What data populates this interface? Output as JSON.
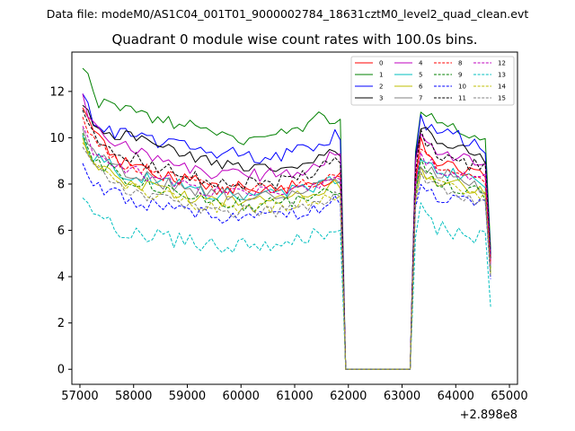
{
  "chart_data": {
    "type": "line",
    "suptitle": "Data file: modeM0/AS1C04_001T01_9000002784_18631cztM0_level2_quad_clean.evt",
    "title": "Quadrant 0 module wise count rates with 100.0s bins.",
    "xlabel": "",
    "ylabel": "",
    "x_offset_label": "+2.898e8",
    "xlim": [
      56850,
      65150
    ],
    "ylim": [
      -0.65,
      13.7
    ],
    "xticks": [
      57000,
      58000,
      59000,
      60000,
      61000,
      62000,
      63000,
      64000,
      65000
    ],
    "xtick_labels": [
      "57000",
      "58000",
      "59000",
      "60000",
      "61000",
      "62000",
      "63000",
      "64000",
      "65000"
    ],
    "yticks": [
      0,
      2,
      4,
      6,
      8,
      10,
      12
    ],
    "ytick_labels": [
      "0",
      "2",
      "4",
      "6",
      "8",
      "10",
      "12"
    ],
    "grid": false,
    "legend_position": "top-right",
    "legend_columns": 4,
    "seg1": {
      "x_start": 57050,
      "step": 100,
      "count": 49
    },
    "gap": {
      "x_start": 61950,
      "x_end": 63150,
      "step": 100,
      "value": 0
    },
    "seg2": {
      "x_start": 63250,
      "step": 100,
      "count": 15
    },
    "series": [
      {
        "name": "0",
        "color": "#ff0000",
        "dash": "solid",
        "seg1_anchors": [
          [
            57050,
            11.3
          ],
          [
            57250,
            10.2
          ],
          [
            57700,
            9.0
          ],
          [
            58500,
            8.4
          ],
          [
            59500,
            7.9
          ],
          [
            60500,
            7.8
          ],
          [
            61300,
            8.0
          ],
          [
            61750,
            8.3
          ],
          [
            61850,
            8.5
          ]
        ],
        "seg2_anchors": [
          [
            63250,
            8.2
          ],
          [
            63350,
            9.9
          ],
          [
            63500,
            9.1
          ],
          [
            64000,
            8.6
          ],
          [
            64550,
            8.3
          ],
          [
            64650,
            4.8
          ]
        ],
        "amp": 0.3
      },
      {
        "name": "1",
        "color": "#008000",
        "dash": "solid",
        "seg1_anchors": [
          [
            57050,
            13.0
          ],
          [
            57150,
            12.6
          ],
          [
            57250,
            11.7
          ],
          [
            57500,
            11.3
          ],
          [
            58500,
            10.8
          ],
          [
            59500,
            10.2
          ],
          [
            60200,
            9.9
          ],
          [
            61000,
            10.3
          ],
          [
            61500,
            10.9
          ],
          [
            61850,
            10.8
          ]
        ],
        "seg2_anchors": [
          [
            63250,
            9.4
          ],
          [
            63350,
            11.3
          ],
          [
            63500,
            11.0
          ],
          [
            64000,
            10.4
          ],
          [
            64550,
            10.0
          ],
          [
            64650,
            5.2
          ]
        ],
        "amp": 0.3
      },
      {
        "name": "2",
        "color": "#0000ff",
        "dash": "solid",
        "seg1_anchors": [
          [
            57050,
            11.9
          ],
          [
            57250,
            10.7
          ],
          [
            57700,
            10.2
          ],
          [
            58500,
            9.8
          ],
          [
            59500,
            9.4
          ],
          [
            60500,
            9.1
          ],
          [
            61300,
            9.6
          ],
          [
            61750,
            10.1
          ],
          [
            61850,
            9.9
          ]
        ],
        "seg2_anchors": [
          [
            63250,
            9.2
          ],
          [
            63350,
            10.9
          ],
          [
            63500,
            10.5
          ],
          [
            64000,
            10.1
          ],
          [
            64550,
            9.4
          ],
          [
            64650,
            5.0
          ]
        ],
        "amp": 0.3
      },
      {
        "name": "3",
        "color": "#000000",
        "dash": "solid",
        "seg1_anchors": [
          [
            57050,
            11.4
          ],
          [
            57250,
            10.5
          ],
          [
            57700,
            10.1
          ],
          [
            58500,
            9.6
          ],
          [
            59500,
            8.9
          ],
          [
            60500,
            8.8
          ],
          [
            61300,
            8.9
          ],
          [
            61750,
            9.3
          ],
          [
            61850,
            9.2
          ]
        ],
        "seg2_anchors": [
          [
            63250,
            9.1
          ],
          [
            63350,
            10.6
          ],
          [
            63500,
            10.1
          ],
          [
            64000,
            9.6
          ],
          [
            64550,
            9.0
          ],
          [
            64650,
            4.9
          ]
        ],
        "amp": 0.3
      },
      {
        "name": "4",
        "color": "#bf00bf",
        "dash": "solid",
        "seg1_anchors": [
          [
            57050,
            11.9
          ],
          [
            57250,
            10.5
          ],
          [
            57700,
            9.7
          ],
          [
            58500,
            8.9
          ],
          [
            59500,
            8.4
          ],
          [
            60500,
            8.4
          ],
          [
            61300,
            8.6
          ],
          [
            61750,
            9.3
          ],
          [
            61850,
            9.3
          ]
        ],
        "seg2_anchors": [
          [
            63250,
            9.0
          ],
          [
            63350,
            10.1
          ],
          [
            63500,
            9.6
          ],
          [
            64000,
            9.2
          ],
          [
            64550,
            9.0
          ],
          [
            64650,
            4.7
          ]
        ],
        "amp": 0.3
      },
      {
        "name": "5",
        "color": "#00bfbf",
        "dash": "solid",
        "seg1_anchors": [
          [
            57050,
            10.1
          ],
          [
            57250,
            9.2
          ],
          [
            57700,
            8.6
          ],
          [
            58500,
            8.1
          ],
          [
            59500,
            7.6
          ],
          [
            60500,
            7.6
          ],
          [
            61300,
            7.8
          ],
          [
            61750,
            8.2
          ],
          [
            61850,
            8.1
          ]
        ],
        "seg2_anchors": [
          [
            63250,
            8.0
          ],
          [
            63350,
            9.3
          ],
          [
            63500,
            8.8
          ],
          [
            64000,
            8.4
          ],
          [
            64550,
            8.0
          ],
          [
            64650,
            4.4
          ]
        ],
        "amp": 0.3
      },
      {
        "name": "6",
        "color": "#bfbf00",
        "dash": "solid",
        "seg1_anchors": [
          [
            57050,
            10.0
          ],
          [
            57250,
            9.0
          ],
          [
            57700,
            8.3
          ],
          [
            58500,
            7.7
          ],
          [
            59500,
            7.2
          ],
          [
            60500,
            7.2
          ],
          [
            61300,
            7.5
          ],
          [
            61750,
            7.9
          ],
          [
            61850,
            7.8
          ]
        ],
        "seg2_anchors": [
          [
            63250,
            7.6
          ],
          [
            63350,
            8.7
          ],
          [
            63500,
            8.2
          ],
          [
            64000,
            8.0
          ],
          [
            64550,
            7.7
          ],
          [
            64650,
            4.3
          ]
        ],
        "amp": 0.3
      },
      {
        "name": "7",
        "color": "#808080",
        "dash": "solid",
        "seg1_anchors": [
          [
            57050,
            10.4
          ],
          [
            57250,
            9.4
          ],
          [
            57700,
            8.7
          ],
          [
            58500,
            8.1
          ],
          [
            59500,
            7.6
          ],
          [
            60500,
            7.6
          ],
          [
            61300,
            7.8
          ],
          [
            61750,
            8.1
          ],
          [
            61850,
            8.0
          ]
        ],
        "seg2_anchors": [
          [
            63250,
            7.9
          ],
          [
            63350,
            9.0
          ],
          [
            63500,
            8.6
          ],
          [
            64000,
            8.3
          ],
          [
            64550,
            7.8
          ],
          [
            64650,
            4.4
          ]
        ],
        "amp": 0.3
      },
      {
        "name": "8",
        "color": "#ff0000",
        "dash": "dashed",
        "seg1_anchors": [
          [
            57050,
            10.9
          ],
          [
            57250,
            9.8
          ],
          [
            57700,
            9.0
          ],
          [
            58500,
            8.4
          ],
          [
            59500,
            7.8
          ],
          [
            60500,
            7.8
          ],
          [
            61300,
            8.0
          ],
          [
            61750,
            8.4
          ],
          [
            61850,
            8.3
          ]
        ],
        "seg2_anchors": [
          [
            63250,
            8.0
          ],
          [
            63350,
            9.5
          ],
          [
            63500,
            9.0
          ],
          [
            64000,
            8.6
          ],
          [
            64550,
            8.3
          ],
          [
            64650,
            4.6
          ]
        ],
        "amp": 0.3
      },
      {
        "name": "9",
        "color": "#008000",
        "dash": "dashed",
        "seg1_anchors": [
          [
            57050,
            10.2
          ],
          [
            57250,
            9.1
          ],
          [
            57700,
            8.4
          ],
          [
            58500,
            7.8
          ],
          [
            59500,
            7.2
          ],
          [
            60500,
            7.1
          ],
          [
            61300,
            7.4
          ],
          [
            61750,
            7.7
          ],
          [
            61850,
            7.6
          ]
        ],
        "seg2_anchors": [
          [
            63250,
            7.5
          ],
          [
            63350,
            8.8
          ],
          [
            63500,
            8.3
          ],
          [
            64000,
            7.9
          ],
          [
            64550,
            7.6
          ],
          [
            64650,
            4.2
          ]
        ],
        "amp": 0.3
      },
      {
        "name": "10",
        "color": "#0000ff",
        "dash": "dashed",
        "seg1_anchors": [
          [
            57050,
            8.9
          ],
          [
            57250,
            7.9
          ],
          [
            57700,
            7.5
          ],
          [
            58500,
            7.0
          ],
          [
            59500,
            6.6
          ],
          [
            60500,
            6.6
          ],
          [
            61300,
            6.8
          ],
          [
            61750,
            7.2
          ],
          [
            61850,
            7.1
          ]
        ],
        "seg2_anchors": [
          [
            63250,
            7.0
          ],
          [
            63350,
            8.0
          ],
          [
            63500,
            7.6
          ],
          [
            64000,
            7.3
          ],
          [
            64550,
            7.0
          ],
          [
            64650,
            3.9
          ]
        ],
        "amp": 0.3
      },
      {
        "name": "11",
        "color": "#000000",
        "dash": "dashed",
        "seg1_anchors": [
          [
            57050,
            11.2
          ],
          [
            57250,
            10.1
          ],
          [
            57700,
            9.4
          ],
          [
            58500,
            8.7
          ],
          [
            59500,
            8.1
          ],
          [
            60500,
            8.0
          ],
          [
            61300,
            8.4
          ],
          [
            61750,
            9.0
          ],
          [
            61850,
            8.9
          ]
        ],
        "seg2_anchors": [
          [
            63250,
            8.5
          ],
          [
            63350,
            10.1
          ],
          [
            63500,
            9.6
          ],
          [
            64000,
            9.0
          ],
          [
            64550,
            8.7
          ],
          [
            64650,
            4.8
          ]
        ],
        "amp": 0.3
      },
      {
        "name": "12",
        "color": "#bf00bf",
        "dash": "dashed",
        "seg1_anchors": [
          [
            57050,
            10.5
          ],
          [
            57250,
            9.5
          ],
          [
            57700,
            8.8
          ],
          [
            58500,
            8.2
          ],
          [
            59500,
            7.7
          ],
          [
            60500,
            7.7
          ],
          [
            61300,
            7.9
          ],
          [
            61750,
            8.3
          ],
          [
            61850,
            8.2
          ]
        ],
        "seg2_anchors": [
          [
            63250,
            8.0
          ],
          [
            63350,
            9.4
          ],
          [
            63500,
            8.9
          ],
          [
            64000,
            8.5
          ],
          [
            64550,
            8.2
          ],
          [
            64650,
            4.5
          ]
        ],
        "amp": 0.3
      },
      {
        "name": "13",
        "color": "#00bfbf",
        "dash": "dashed",
        "seg1_anchors": [
          [
            57050,
            7.4
          ],
          [
            57250,
            6.8
          ],
          [
            57700,
            6.0
          ],
          [
            58500,
            5.7
          ],
          [
            59500,
            5.3
          ],
          [
            60500,
            5.3
          ],
          [
            61300,
            5.7
          ],
          [
            61750,
            6.1
          ],
          [
            61850,
            6.0
          ]
        ],
        "seg2_anchors": [
          [
            63250,
            5.7
          ],
          [
            63350,
            6.9
          ],
          [
            63500,
            6.3
          ],
          [
            64000,
            5.8
          ],
          [
            64550,
            5.7
          ],
          [
            64650,
            2.7
          ]
        ],
        "amp": 0.35
      },
      {
        "name": "14",
        "color": "#bfbf00",
        "dash": "dashed",
        "seg1_anchors": [
          [
            57050,
            9.8
          ],
          [
            57250,
            8.8
          ],
          [
            57700,
            8.1
          ],
          [
            58500,
            7.5
          ],
          [
            59500,
            7.0
          ],
          [
            60500,
            7.0
          ],
          [
            61300,
            7.3
          ],
          [
            61750,
            7.6
          ],
          [
            61850,
            7.5
          ]
        ],
        "seg2_anchors": [
          [
            63250,
            7.3
          ],
          [
            63350,
            8.5
          ],
          [
            63500,
            8.0
          ],
          [
            64000,
            7.7
          ],
          [
            64550,
            7.5
          ],
          [
            64650,
            4.1
          ]
        ],
        "amp": 0.3
      },
      {
        "name": "15",
        "color": "#808080",
        "dash": "dashed",
        "seg1_anchors": [
          [
            57050,
            9.6
          ],
          [
            57250,
            8.6
          ],
          [
            57700,
            7.9
          ],
          [
            58500,
            7.3
          ],
          [
            59500,
            6.8
          ],
          [
            60500,
            6.8
          ],
          [
            61300,
            7.1
          ],
          [
            61750,
            7.5
          ],
          [
            61850,
            7.4
          ]
        ],
        "seg2_anchors": [
          [
            63250,
            7.2
          ],
          [
            63350,
            8.3
          ],
          [
            63500,
            7.9
          ],
          [
            64000,
            7.5
          ],
          [
            64550,
            7.2
          ],
          [
            64650,
            4.0
          ]
        ],
        "amp": 0.3
      }
    ]
  }
}
